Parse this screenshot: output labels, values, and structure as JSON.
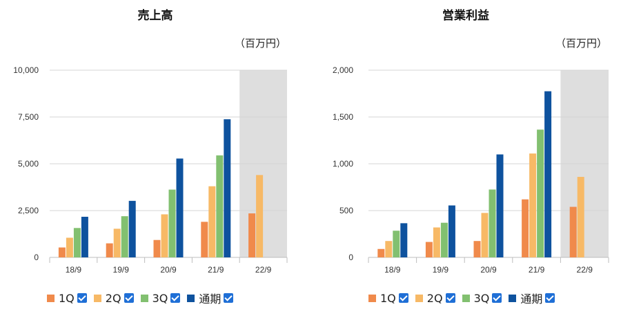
{
  "chart_data": [
    {
      "type": "bar",
      "title": "売上高",
      "unit": "（百万円）",
      "categories": [
        "18/9",
        "19/9",
        "20/9",
        "21/9",
        "22/9"
      ],
      "ylim": [
        0,
        10000
      ],
      "yticks": [
        0,
        2500,
        5000,
        7500,
        10000
      ],
      "ytick_labels": [
        "0",
        "2,500",
        "5,000",
        "7,500",
        "10,000"
      ],
      "highlight_category": "22/9",
      "grid": true,
      "legend_position": "bottom-left",
      "series": [
        {
          "name": "1Q",
          "color": "#f08a4b",
          "values": [
            530,
            750,
            930,
            1900,
            2350
          ]
        },
        {
          "name": "2Q",
          "color": "#f7b966",
          "values": [
            1050,
            1530,
            2300,
            3800,
            4400
          ]
        },
        {
          "name": "3Q",
          "color": "#82c070",
          "values": [
            1570,
            2200,
            3620,
            5450,
            null
          ]
        },
        {
          "name": "通期",
          "color": "#0e529e",
          "values": [
            2170,
            3020,
            5280,
            7380,
            null
          ]
        }
      ]
    },
    {
      "type": "bar",
      "title": "営業利益",
      "unit": "（百万円）",
      "categories": [
        "18/9",
        "19/9",
        "20/9",
        "21/9",
        "22/9"
      ],
      "ylim": [
        0,
        2000
      ],
      "yticks": [
        0,
        500,
        1000,
        1500,
        2000
      ],
      "ytick_labels": [
        "0",
        "500",
        "1,000",
        "1,500",
        "2,000"
      ],
      "highlight_category": "22/9",
      "grid": true,
      "legend_position": "bottom-left",
      "series": [
        {
          "name": "1Q",
          "color": "#f08a4b",
          "values": [
            90,
            165,
            175,
            620,
            540
          ]
        },
        {
          "name": "2Q",
          "color": "#f7b966",
          "values": [
            175,
            320,
            475,
            1110,
            860
          ]
        },
        {
          "name": "3Q",
          "color": "#82c070",
          "values": [
            285,
            370,
            725,
            1365,
            null
          ]
        },
        {
          "name": "通期",
          "color": "#0e529e",
          "values": [
            365,
            555,
            1100,
            1775,
            null
          ]
        }
      ]
    }
  ]
}
